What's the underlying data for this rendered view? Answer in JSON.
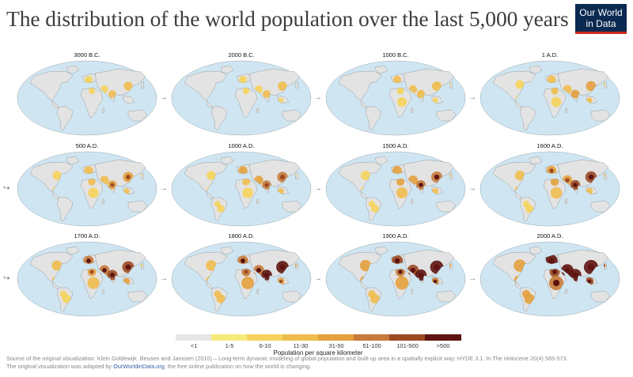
{
  "title": "The distribution of the world population over the last 5,000 years",
  "logo": {
    "line1": "Our World",
    "line2": "in Data"
  },
  "panels": [
    {
      "label": "3000 B.C.",
      "intensity": 0.3
    },
    {
      "label": "2000 B.C.",
      "intensity": 0.33
    },
    {
      "label": "1000 B.C.",
      "intensity": 0.38
    },
    {
      "label": "1 A.D.",
      "intensity": 0.45
    },
    {
      "label": "500 A.D.",
      "intensity": 0.48
    },
    {
      "label": "1000 A.D.",
      "intensity": 0.5
    },
    {
      "label": "1500 A.D.",
      "intensity": 0.58
    },
    {
      "label": "1600 A.D.",
      "intensity": 0.62
    },
    {
      "label": "1700 A.D.",
      "intensity": 0.68
    },
    {
      "label": "1800 A.D.",
      "intensity": 0.75
    },
    {
      "label": "1900 A.D.",
      "intensity": 0.85
    },
    {
      "label": "2000 A.D.",
      "intensity": 1.0
    }
  ],
  "legend": {
    "items": [
      {
        "label": "<1",
        "color": "#e6e6e6"
      },
      {
        "label": "1-5",
        "color": "#f6ea7a"
      },
      {
        "label": "6-10",
        "color": "#f5d35a"
      },
      {
        "label": "11-30",
        "color": "#efbd4e"
      },
      {
        "label": "31-50",
        "color": "#e3a03d"
      },
      {
        "label": "51-100",
        "color": "#c77a3a"
      },
      {
        "label": "101-500",
        "color": "#9c4a24"
      },
      {
        "label": ">500",
        "color": "#5e1410"
      }
    ],
    "caption": "Population per square kilometer"
  },
  "source": {
    "line1": "Source of the original visualization: Klein Goldewijk, Beusen and Janssen (2010) – Long-term dynamic modeling of global population and built-up area in a spatially explicit way: HYDE 3.1. In The Holocene 20(4) 565-573.",
    "line2_pre": "The original visualization was adapted by ",
    "line2_link": "OurWorldinData.org",
    "line2_post": ", the free online publication on how the world is changing."
  },
  "colors": {
    "ocean": "#cfe6f2",
    "land": "#e3e3e3",
    "coast": "#8a8a8a"
  }
}
